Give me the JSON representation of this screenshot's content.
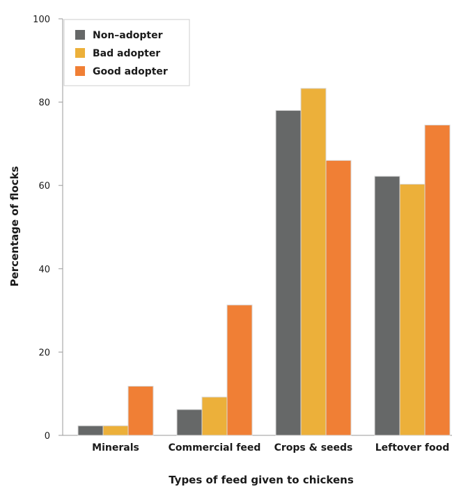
{
  "chart_data": {
    "type": "bar",
    "categories": [
      "Minerals",
      "Commercial feed",
      "Crops & seeds",
      "Leftover food"
    ],
    "series": [
      {
        "name": "Non–adopter",
        "color": "#666868",
        "values": [
          2.3,
          6.2,
          78,
          62.2
        ]
      },
      {
        "name": "Bad adopter",
        "color": "#ecb03a",
        "values": [
          2.3,
          9.2,
          83.3,
          60.3
        ]
      },
      {
        "name": "Good adopter",
        "color": "#f07f35",
        "values": [
          11.8,
          31.3,
          66.0,
          74.5
        ]
      }
    ],
    "title": "",
    "xlabel": "Types of feed given to chickens",
    "ylabel": "Percentage of flocks",
    "ylim": [
      0,
      100
    ],
    "yticks": [
      0,
      20,
      40,
      60,
      80,
      100
    ],
    "grid": false,
    "legend_position": "top-left"
  }
}
